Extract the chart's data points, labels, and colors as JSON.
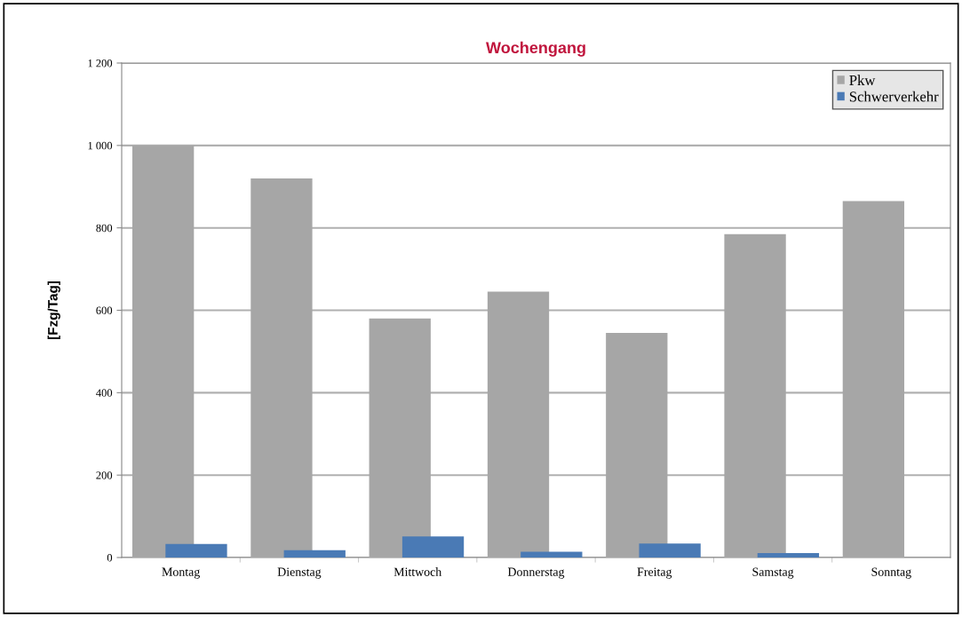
{
  "chart_data": {
    "type": "bar",
    "title": "Wochengang",
    "ylabel": "[Fzg/Tag]",
    "categories": [
      "Montag",
      "Dienstag",
      "Mittwoch",
      "Donnerstag",
      "Freitag",
      "Samstag",
      "Sonntag"
    ],
    "series": [
      {
        "name": "Pkw",
        "color": "#a6a6a6",
        "values": [
          1000,
          920,
          580,
          645,
          545,
          785,
          865
        ]
      },
      {
        "name": "Schwerverkehr",
        "color": "#4a7ab5",
        "values": [
          33,
          18,
          51,
          14,
          34,
          11,
          0
        ]
      }
    ],
    "ylim": [
      0,
      1200
    ],
    "yticks": [
      0,
      200,
      400,
      600,
      800,
      {
        "value": 1000,
        "label": "1 000"
      },
      {
        "value": 1200,
        "label": "1 200"
      }
    ],
    "grid": "y",
    "legend": "top right"
  }
}
